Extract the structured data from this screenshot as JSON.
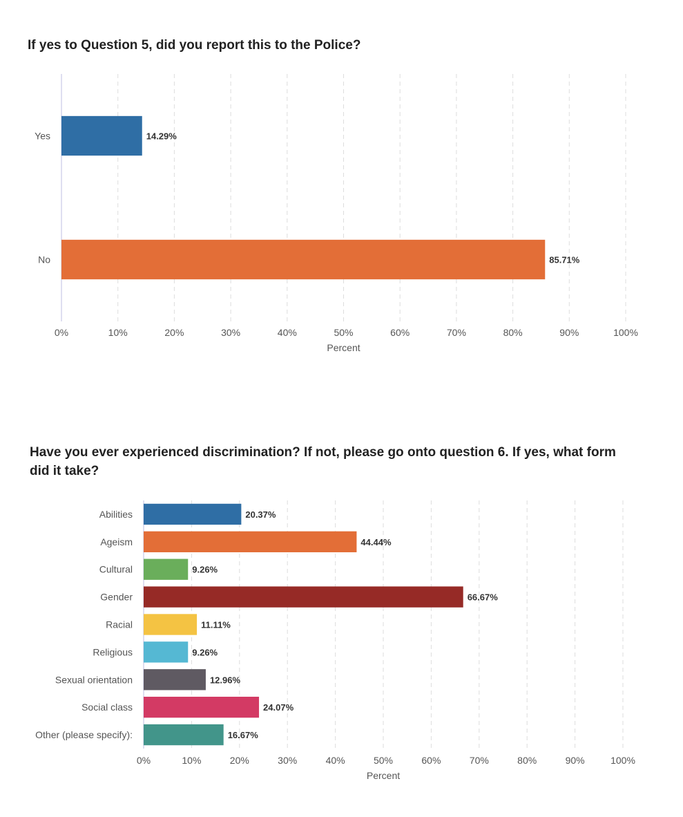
{
  "chart_data": [
    {
      "type": "bar",
      "orientation": "horizontal",
      "title": "If yes to Question 5, did you report this to the Police?",
      "xlabel": "Percent",
      "ylabel": "",
      "xlim": [
        0,
        100
      ],
      "ticks": [
        "0%",
        "10%",
        "20%",
        "30%",
        "40%",
        "50%",
        "60%",
        "70%",
        "80%",
        "90%",
        "100%"
      ],
      "grid": true,
      "categories": [
        "Yes",
        "No"
      ],
      "values": [
        14.29,
        85.71
      ],
      "value_labels": [
        "14.29%",
        "85.71%"
      ],
      "colors": [
        "#2f6ea5",
        "#e36e37"
      ]
    },
    {
      "type": "bar",
      "orientation": "horizontal",
      "title": "Have you ever experienced discrimination? If not, please go onto question 6. If yes, what form did it take?",
      "xlabel": "Percent",
      "ylabel": "",
      "xlim": [
        0,
        100
      ],
      "ticks": [
        "0%",
        "10%",
        "20%",
        "30%",
        "40%",
        "50%",
        "60%",
        "70%",
        "80%",
        "90%",
        "100%"
      ],
      "grid": true,
      "categories": [
        "Abilities",
        "Ageism",
        "Cultural",
        "Gender",
        "Racial",
        "Religious",
        "Sexual orientation",
        "Social class",
        "Other (please specify):"
      ],
      "values": [
        20.37,
        44.44,
        9.26,
        66.67,
        11.11,
        9.26,
        12.96,
        24.07,
        16.67
      ],
      "value_labels": [
        "20.37%",
        "44.44%",
        "9.26%",
        "66.67%",
        "11.11%",
        "9.26%",
        "12.96%",
        "24.07%",
        "16.67%"
      ],
      "colors": [
        "#2f6ea5",
        "#e36e37",
        "#6aae5b",
        "#962a26",
        "#f4c343",
        "#55b8d3",
        "#5f5a62",
        "#d33a64",
        "#42958a"
      ]
    }
  ]
}
